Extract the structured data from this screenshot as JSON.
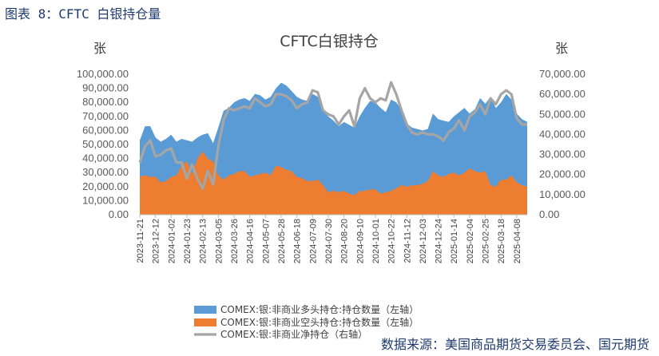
{
  "figure_caption": "图表 8：CFTC 白银持仓量",
  "source_note": "数据来源：美国商品期货交易委员会、国元期货",
  "colors": {
    "long": "#5b9bd5",
    "short": "#ed7d31",
    "net": "#a5a5a5"
  },
  "chart_data": {
    "type": "area",
    "title": "CFTC白银持仓",
    "ylabel_left": "张",
    "ylabel_right": "张",
    "ylim_left": [
      0,
      100000
    ],
    "ylim_right": [
      0,
      70000
    ],
    "yticks_left": [
      "100,000.00",
      "90,000.00",
      "80,000.00",
      "70,000.00",
      "60,000.00",
      "50,000.00",
      "40,000.00",
      "30,000.00",
      "20,000.00",
      "10,000.00",
      "0.00"
    ],
    "yticks_right": [
      "70,000.00",
      "60,000.00",
      "50,000.00",
      "40,000.00",
      "30,000.00",
      "20,000.00",
      "10,000.00",
      "0.00"
    ],
    "xtick_labels": [
      "2023-11-21",
      "2023-12-12",
      "2024-01-02",
      "2024-01-23",
      "2024-02-13",
      "2024-03-05",
      "2024-03-26",
      "2024-04-16",
      "2024-05-07",
      "2024-05-28",
      "2024-06-18",
      "2024-07-09",
      "2024-07-30",
      "2024-08-20",
      "2024-09-10",
      "2024-10-01",
      "2024-10-22",
      "2024-11-12",
      "2024-12-03",
      "2024-12-24",
      "2025-01-14",
      "2025-02-04",
      "2025-02-25",
      "2025-03-18",
      "2025-04-08"
    ],
    "x": [
      "2023-11-21",
      "2023-11-28",
      "2023-12-05",
      "2023-12-12",
      "2023-12-19",
      "2023-12-26",
      "2024-01-02",
      "2024-01-09",
      "2024-01-16",
      "2024-01-23",
      "2024-01-30",
      "2024-02-06",
      "2024-02-13",
      "2024-02-20",
      "2024-02-27",
      "2024-03-05",
      "2024-03-12",
      "2024-03-19",
      "2024-03-26",
      "2024-04-02",
      "2024-04-09",
      "2024-04-16",
      "2024-04-23",
      "2024-04-30",
      "2024-05-07",
      "2024-05-14",
      "2024-05-21",
      "2024-05-28",
      "2024-06-04",
      "2024-06-11",
      "2024-06-18",
      "2024-06-25",
      "2024-07-02",
      "2024-07-09",
      "2024-07-16",
      "2024-07-23",
      "2024-07-30",
      "2024-08-06",
      "2024-08-13",
      "2024-08-20",
      "2024-08-27",
      "2024-09-03",
      "2024-09-10",
      "2024-09-17",
      "2024-09-24",
      "2024-10-01",
      "2024-10-08",
      "2024-10-15",
      "2024-10-22",
      "2024-10-29",
      "2024-11-05",
      "2024-11-12",
      "2024-11-19",
      "2024-11-26",
      "2024-12-03",
      "2024-12-10",
      "2024-12-17",
      "2024-12-24",
      "2024-12-31",
      "2025-01-07",
      "2025-01-14",
      "2025-01-21",
      "2025-01-28",
      "2025-02-04",
      "2025-02-11",
      "2025-02-18",
      "2025-02-25",
      "2025-03-04",
      "2025-03-11",
      "2025-03-18",
      "2025-03-25",
      "2025-04-01",
      "2025-04-08",
      "2025-04-15",
      "2025-04-22"
    ],
    "series": [
      {
        "name": "COMEX:银:非商业多头持仓:持仓数量（左轴）",
        "axis": "left",
        "values": [
          53000,
          63000,
          63000,
          55000,
          52000,
          54000,
          57000,
          52000,
          54000,
          53000,
          52000,
          55000,
          57000,
          58000,
          51000,
          62000,
          74000,
          76000,
          80000,
          82000,
          83000,
          81000,
          86000,
          85000,
          82000,
          84000,
          90000,
          94000,
          92000,
          88000,
          84000,
          82000,
          81000,
          86000,
          84000,
          76000,
          70000,
          67000,
          63000,
          66000,
          64000,
          62000,
          70000,
          76000,
          81000,
          80000,
          76000,
          73000,
          82000,
          80000,
          75000,
          65000,
          62000,
          61000,
          60000,
          61000,
          72000,
          68000,
          67000,
          66000,
          70000,
          73000,
          76000,
          72000,
          75000,
          83000,
          79000,
          84000,
          76000,
          80000,
          86000,
          82000,
          72000,
          68000,
          66000
        ]
      },
      {
        "name": "COMEX:银:非商业空头持仓:持仓数量（左轴）",
        "axis": "left",
        "values": [
          27000,
          28000,
          27000,
          27000,
          23000,
          24000,
          27000,
          28000,
          35000,
          38000,
          29000,
          40000,
          45000,
          40000,
          38000,
          28000,
          25000,
          28000,
          29000,
          31000,
          31000,
          27000,
          28000,
          29000,
          30000,
          28000,
          35000,
          34000,
          32000,
          31000,
          27000,
          26000,
          24000,
          24000,
          25000,
          21000,
          16000,
          17000,
          16000,
          17000,
          15000,
          14000,
          17000,
          17000,
          18000,
          18000,
          15000,
          16000,
          17000,
          19000,
          21000,
          20000,
          21000,
          21000,
          22000,
          24000,
          31000,
          28000,
          27000,
          29000,
          30000,
          28000,
          30000,
          33000,
          31000,
          30000,
          31000,
          21000,
          20000,
          25000,
          25000,
          28000,
          23000,
          21000,
          20000
        ]
      },
      {
        "name": "COMEX:银:非商业净持仓（右轴）",
        "axis": "right",
        "values": [
          26000,
          34000,
          37000,
          29000,
          30000,
          32000,
          33000,
          26000,
          26000,
          18000,
          25000,
          18000,
          13000,
          22000,
          15000,
          34000,
          47000,
          53000,
          52000,
          53000,
          54000,
          53000,
          58000,
          56000,
          54000,
          55000,
          60000,
          60000,
          59000,
          57000,
          53000,
          55000,
          56000,
          62000,
          61000,
          52000,
          50000,
          49000,
          45000,
          49000,
          52000,
          44000,
          58000,
          63000,
          58000,
          56000,
          58000,
          57000,
          66000,
          60000,
          52000,
          45000,
          41000,
          40000,
          41000,
          40000,
          40000,
          39000,
          37000,
          41000,
          43000,
          47000,
          42000,
          49000,
          51000,
          55000,
          50000,
          58000,
          55000,
          60000,
          62000,
          60000,
          48000,
          45000,
          45000
        ]
      }
    ],
    "legend_position": "bottom"
  }
}
